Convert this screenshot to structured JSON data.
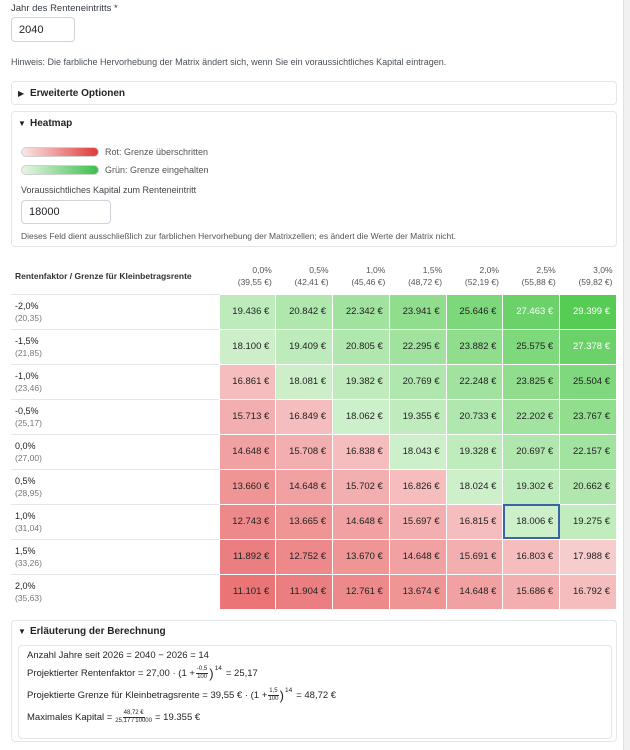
{
  "year_field": {
    "label": "Jahr des Renteneintritts *",
    "value": "2040"
  },
  "hint": "Hinweis: Die farbliche Hervorhebung der Matrix ändert sich, wenn Sie ein voraussichtliches Kapital eintragen.",
  "advanced_options": {
    "label": "Erweiterte Optionen"
  },
  "heatmap": {
    "label": "Heatmap",
    "legend_red": "Rot: Grenze überschritten",
    "legend_green": "Grün: Grenze eingehalten",
    "capital_label": "Voraussichtliches Kapital zum Renteneintritt",
    "capital_value": "18000",
    "capital_note": "Dieses Feld dient ausschließlich zur farblichen Hervorhebung der Matrixzellen; es ändert die Werte der Matrix nicht.",
    "colors": {
      "red": "#e03a3a",
      "green": "#3cbf4a",
      "selected_border": "#3a64a8"
    }
  },
  "matrix": {
    "corner_header": "Rentenfaktor / Grenze für Kleinbetragsrente",
    "columns": [
      {
        "rate": "0,0%",
        "limit": "(39,55 €)"
      },
      {
        "rate": "0,5%",
        "limit": "(42,41 €)"
      },
      {
        "rate": "1,0%",
        "limit": "(45,46 €)"
      },
      {
        "rate": "1,5%",
        "limit": "(48,72 €)"
      },
      {
        "rate": "2,0%",
        "limit": "(52,19 €)"
      },
      {
        "rate": "2,5%",
        "limit": "(55,88 €)"
      },
      {
        "rate": "3,0%",
        "limit": "(59,82 €)"
      }
    ],
    "rows": [
      {
        "rate": "-2,0%",
        "factor": "(20,35)",
        "values": [
          "19.436 €",
          "20.842 €",
          "22.342 €",
          "23.941 €",
          "25.646 €",
          "27.463 €",
          "29.399 €"
        ]
      },
      {
        "rate": "-1,5%",
        "factor": "(21,85)",
        "values": [
          "18.100 €",
          "19.409 €",
          "20.805 €",
          "22.295 €",
          "23.882 €",
          "25.575 €",
          "27.378 €"
        ]
      },
      {
        "rate": "-1,0%",
        "factor": "(23,46)",
        "values": [
          "16.861 €",
          "18.081 €",
          "19.382 €",
          "20.769 €",
          "22.248 €",
          "23.825 €",
          "25.504 €"
        ]
      },
      {
        "rate": "-0,5%",
        "factor": "(25,17)",
        "values": [
          "15.713 €",
          "16.849 €",
          "18.062 €",
          "19.355 €",
          "20.733 €",
          "22.202 €",
          "23.767 €"
        ]
      },
      {
        "rate": "0,0%",
        "factor": "(27,00)",
        "values": [
          "14.648 €",
          "15.708 €",
          "16.838 €",
          "18.043 €",
          "19.328 €",
          "20.697 €",
          "22.157 €"
        ]
      },
      {
        "rate": "0,5%",
        "factor": "(28,95)",
        "values": [
          "13.660 €",
          "14.648 €",
          "15.702 €",
          "16.826 €",
          "18.024 €",
          "19.302 €",
          "20.662 €"
        ]
      },
      {
        "rate": "1,0%",
        "factor": "(31,04)",
        "values": [
          "12.743 €",
          "13.665 €",
          "14.648 €",
          "15.697 €",
          "16.815 €",
          "18.006 €",
          "19.275 €"
        ]
      },
      {
        "rate": "1,5%",
        "factor": "(33,26)",
        "values": [
          "11.892 €",
          "12.752 €",
          "13.670 €",
          "14.648 €",
          "15.691 €",
          "16.803 €",
          "17.988 €"
        ]
      },
      {
        "rate": "2,0%",
        "factor": "(35,63)",
        "values": [
          "11.101 €",
          "11.904 €",
          "12.761 €",
          "13.674 €",
          "14.648 €",
          "15.686 €",
          "16.792 €"
        ]
      }
    ]
  },
  "explanation": {
    "label": "Erläuterung der Berechnung",
    "years_line": "Anzahl Jahre seit 2026 = 2040 − 2026 = 14",
    "factor_prefix": "Projektierter Rentenfaktor = 27,00 · (1 +",
    "factor_frac_num": "-0,5",
    "factor_frac_den": "100",
    "factor_exp": "14",
    "factor_result": "= 25,17",
    "limit_prefix": "Projektierte Grenze für Kleinbetragsrente = 39,55 € · (1 +",
    "limit_frac_num": "1,5",
    "limit_frac_den": "100",
    "limit_exp": "14",
    "limit_result": "= 48,72 €",
    "capital_prefix": "Maximales Kapital =",
    "capital_frac_num": "48,72 €",
    "capital_frac_den": "25,17 / 10000",
    "capital_result": "= 19.355 €"
  }
}
